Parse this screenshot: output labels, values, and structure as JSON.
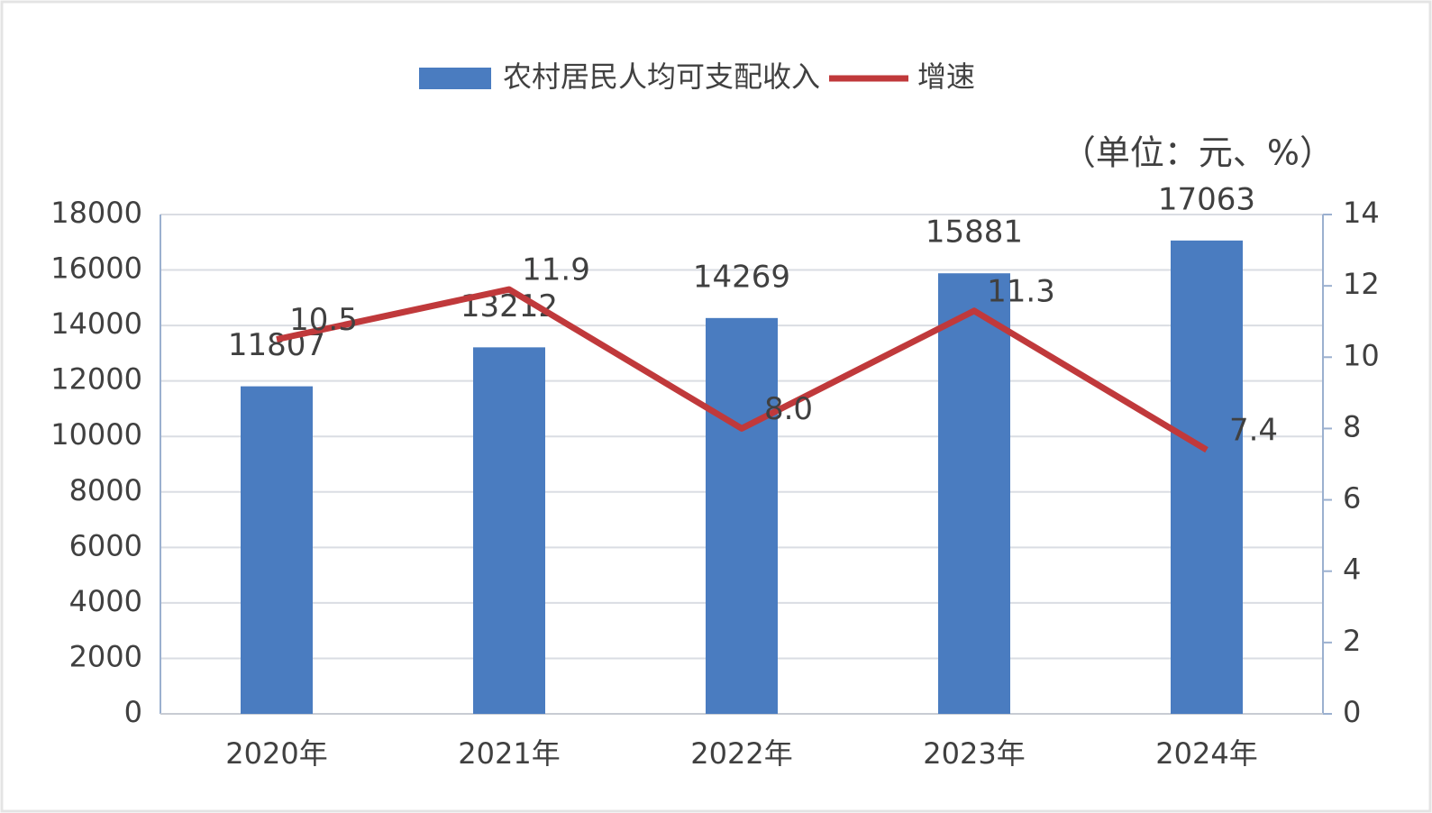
{
  "chart_data": {
    "type": "bar-line",
    "note": "（单位：元、%）",
    "categories": [
      "2020年",
      "2021年",
      "2022年",
      "2023年",
      "2024年"
    ],
    "series": [
      {
        "name": "农村居民人均可支配收入",
        "type": "bar",
        "color": "#4a7cc0",
        "values": [
          11807,
          13212,
          14269,
          15881,
          17063
        ]
      },
      {
        "name": "增速",
        "type": "line",
        "axis": "y2",
        "color": "#c0393b",
        "values": [
          10.5,
          11.9,
          8.0,
          11.3,
          7.4
        ],
        "value_labels": [
          "10.5",
          "11.9",
          "8.0",
          "11.3",
          "7.4"
        ]
      }
    ],
    "ylim": [
      0,
      18000
    ],
    "yticks": [
      0,
      2000,
      4000,
      6000,
      8000,
      10000,
      12000,
      14000,
      16000,
      18000
    ],
    "y2lim": [
      0,
      14
    ],
    "y2ticks": [
      0,
      2,
      4,
      6,
      8,
      10,
      12,
      14
    ],
    "grid": true,
    "legend": "top"
  }
}
